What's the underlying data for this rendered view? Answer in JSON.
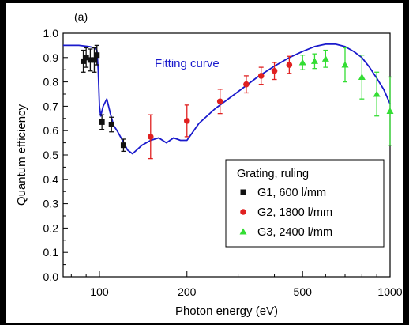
{
  "chart_data": {
    "type": "scatter",
    "panel_label": "(a)",
    "xlabel": "Photon energy (eV)",
    "ylabel": "Quantum efficiency",
    "x_scale": "log",
    "xlim": [
      75,
      1000
    ],
    "ylim": [
      0.0,
      1.0
    ],
    "x_ticks": [
      {
        "value": 100,
        "label": "100"
      },
      {
        "value": 200,
        "label": "200"
      },
      {
        "value": 500,
        "label": "500"
      },
      {
        "value": 1000,
        "label": "1000"
      }
    ],
    "x_minor_ticks": [
      80,
      90,
      300,
      400,
      600,
      700,
      800,
      900
    ],
    "y_ticks": [
      {
        "value": 0.0,
        "label": "0.0"
      },
      {
        "value": 0.1,
        "label": "0.1"
      },
      {
        "value": 0.2,
        "label": "0.2"
      },
      {
        "value": 0.3,
        "label": "0.3"
      },
      {
        "value": 0.4,
        "label": "0.4"
      },
      {
        "value": 0.5,
        "label": "0.5"
      },
      {
        "value": 0.6,
        "label": "0.6"
      },
      {
        "value": 0.7,
        "label": "0.7"
      },
      {
        "value": 0.8,
        "label": "0.8"
      },
      {
        "value": 0.9,
        "label": "0.9"
      },
      {
        "value": 1.0,
        "label": "1.0"
      }
    ],
    "grid": false,
    "legend": {
      "title": "Grating, ruling",
      "position": "bottom-right",
      "entries": [
        "G1, 600 l/mm",
        "G2, 1800 l/mm",
        "G3, 2400 l/mm"
      ]
    },
    "fit": {
      "label": "Fitting curve",
      "color": "#1a1acc",
      "x": [
        75,
        85,
        92,
        96,
        98,
        99,
        100,
        101,
        103,
        106,
        109,
        112,
        115,
        120,
        125,
        130,
        140,
        150,
        160,
        170,
        180,
        190,
        200,
        220,
        250,
        300,
        350,
        400,
        450,
        500,
        550,
        600,
        650,
        700,
        750,
        800,
        850,
        900,
        950,
        1000
      ],
      "y": [
        0.95,
        0.95,
        0.945,
        0.94,
        0.93,
        0.85,
        0.7,
        0.66,
        0.7,
        0.73,
        0.67,
        0.62,
        0.6,
        0.56,
        0.52,
        0.505,
        0.54,
        0.56,
        0.57,
        0.55,
        0.57,
        0.56,
        0.56,
        0.63,
        0.69,
        0.76,
        0.82,
        0.865,
        0.9,
        0.925,
        0.945,
        0.955,
        0.955,
        0.945,
        0.925,
        0.9,
        0.86,
        0.815,
        0.77,
        0.71
      ]
    },
    "series": [
      {
        "name": "G1, 600 l/mm",
        "marker": "square",
        "color": "#111111",
        "points": [
          {
            "x": 88,
            "y": 0.885,
            "err": 0.045
          },
          {
            "x": 90,
            "y": 0.9,
            "err": 0.04
          },
          {
            "x": 93,
            "y": 0.89,
            "err": 0.045
          },
          {
            "x": 96,
            "y": 0.89,
            "err": 0.05
          },
          {
            "x": 98,
            "y": 0.91,
            "err": 0.04
          },
          {
            "x": 102,
            "y": 0.635,
            "err": 0.03
          },
          {
            "x": 110,
            "y": 0.625,
            "err": 0.03
          },
          {
            "x": 121,
            "y": 0.54,
            "err": 0.025
          }
        ]
      },
      {
        "name": "G2, 1800 l/mm",
        "marker": "circle",
        "color": "#e02020",
        "points": [
          {
            "x": 150,
            "y": 0.575,
            "err": 0.09
          },
          {
            "x": 200,
            "y": 0.64,
            "err": 0.065
          },
          {
            "x": 260,
            "y": 0.72,
            "err": 0.05
          },
          {
            "x": 320,
            "y": 0.79,
            "err": 0.035
          },
          {
            "x": 360,
            "y": 0.825,
            "err": 0.035
          },
          {
            "x": 400,
            "y": 0.845,
            "err": 0.035
          },
          {
            "x": 450,
            "y": 0.87,
            "err": 0.035
          }
        ]
      },
      {
        "name": "G3, 2400 l/mm",
        "marker": "triangle",
        "color": "#33dd33",
        "points": [
          {
            "x": 500,
            "y": 0.88,
            "err": 0.03
          },
          {
            "x": 550,
            "y": 0.885,
            "err": 0.03
          },
          {
            "x": 600,
            "y": 0.895,
            "err": 0.035
          },
          {
            "x": 700,
            "y": 0.87,
            "err": 0.07
          },
          {
            "x": 800,
            "y": 0.82,
            "err": 0.09
          },
          {
            "x": 900,
            "y": 0.75,
            "err": 0.09
          },
          {
            "x": 1000,
            "y": 0.68,
            "err": 0.14
          }
        ]
      }
    ]
  }
}
